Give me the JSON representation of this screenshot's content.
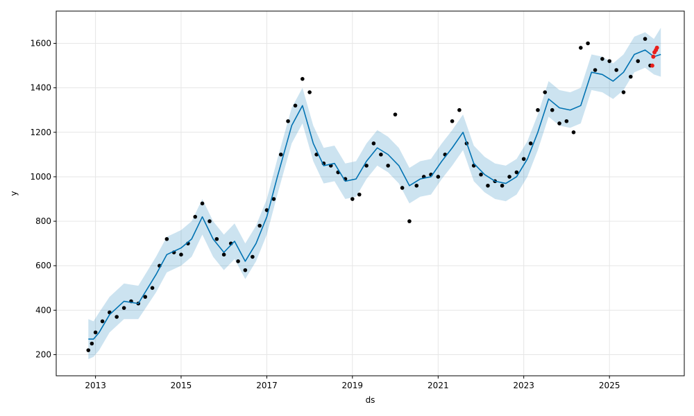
{
  "chart_data": {
    "type": "line",
    "xlabel": "ds",
    "ylabel": "y",
    "x_range": [
      "2012-02-01",
      "2026-10-01"
    ],
    "ylim": [
      105,
      1745
    ],
    "grid": true,
    "x_ticks": [
      "2013",
      "2015",
      "2017",
      "2019",
      "2021",
      "2023",
      "2025"
    ],
    "y_ticks": [
      200,
      400,
      600,
      800,
      1000,
      1200,
      1400,
      1600
    ],
    "colors": {
      "forecast_line": "#0072B2",
      "uncertainty_band": "#0072B2",
      "observed_points": "#000000",
      "recent_points": "#e8201c",
      "grid": "#e6e6e6",
      "axes": "#000000"
    },
    "series": [
      {
        "kind": "forecast",
        "x": [
          "2012-11-01",
          "2012-12-15",
          "2013-02-01",
          "2013-05-01",
          "2013-09-01",
          "2014-01-01",
          "2014-06-01",
          "2014-09-01",
          "2015-01-01",
          "2015-04-01",
          "2015-07-01",
          "2015-10-01",
          "2016-01-01",
          "2016-04-01",
          "2016-07-01",
          "2016-10-01",
          "2017-01-01",
          "2017-04-01",
          "2017-08-01",
          "2017-11-01",
          "2018-02-01",
          "2018-05-01",
          "2018-08-01",
          "2018-11-01",
          "2019-02-01",
          "2019-05-01",
          "2019-08-01",
          "2019-11-01",
          "2020-02-01",
          "2020-05-01",
          "2020-08-01",
          "2020-11-01",
          "2021-02-01",
          "2021-05-01",
          "2021-08-01",
          "2021-11-01",
          "2022-02-01",
          "2022-05-01",
          "2022-08-01",
          "2022-11-01",
          "2023-02-01",
          "2023-05-01",
          "2023-08-01",
          "2023-11-01",
          "2024-02-01",
          "2024-05-01",
          "2024-08-01",
          "2024-11-01",
          "2025-02-01",
          "2025-05-01",
          "2025-08-01",
          "2025-11-01",
          "2026-01-15",
          "2026-03-15"
        ],
        "y": [
          270,
          270,
          300,
          380,
          440,
          430,
          560,
          650,
          680,
          720,
          820,
          720,
          660,
          710,
          620,
          700,
          820,
          1000,
          1230,
          1320,
          1150,
          1050,
          1060,
          980,
          990,
          1070,
          1130,
          1100,
          1050,
          960,
          990,
          1000,
          1070,
          1130,
          1200,
          1060,
          1010,
          980,
          970,
          1000,
          1080,
          1200,
          1350,
          1310,
          1300,
          1320,
          1470,
          1460,
          1430,
          1470,
          1550,
          1570,
          1540,
          1550
        ]
      },
      {
        "kind": "uncertainty",
        "x": [
          "2012-11-01",
          "2012-12-15",
          "2013-02-01",
          "2013-05-01",
          "2013-09-01",
          "2014-01-01",
          "2014-06-01",
          "2014-09-01",
          "2015-01-01",
          "2015-04-01",
          "2015-07-01",
          "2015-10-01",
          "2016-01-01",
          "2016-04-01",
          "2016-07-01",
          "2016-10-01",
          "2017-01-01",
          "2017-04-01",
          "2017-08-01",
          "2017-11-01",
          "2018-02-01",
          "2018-05-01",
          "2018-08-01",
          "2018-11-01",
          "2019-02-01",
          "2019-05-01",
          "2019-08-01",
          "2019-11-01",
          "2020-02-01",
          "2020-05-01",
          "2020-08-01",
          "2020-11-01",
          "2021-02-01",
          "2021-05-01",
          "2021-08-01",
          "2021-11-01",
          "2022-02-01",
          "2022-05-01",
          "2022-08-01",
          "2022-11-01",
          "2023-02-01",
          "2023-05-01",
          "2023-08-01",
          "2023-11-01",
          "2024-02-01",
          "2024-05-01",
          "2024-08-01",
          "2024-11-01",
          "2025-02-01",
          "2025-05-01",
          "2025-08-01",
          "2025-11-01",
          "2026-01-15",
          "2026-03-15"
        ],
        "lower": [
          180,
          190,
          220,
          300,
          360,
          360,
          480,
          570,
          600,
          640,
          740,
          640,
          580,
          630,
          540,
          620,
          740,
          920,
          1150,
          1240,
          1070,
          970,
          980,
          900,
          910,
          990,
          1050,
          1020,
          970,
          880,
          910,
          920,
          990,
          1050,
          1120,
          980,
          930,
          900,
          890,
          920,
          1000,
          1120,
          1270,
          1230,
          1220,
          1240,
          1390,
          1380,
          1350,
          1390,
          1470,
          1490,
          1460,
          1450
        ],
        "upper": [
          360,
          350,
          390,
          460,
          520,
          510,
          640,
          730,
          760,
          800,
          900,
          800,
          740,
          790,
          700,
          780,
          900,
          1080,
          1310,
          1400,
          1230,
          1130,
          1140,
          1060,
          1070,
          1150,
          1210,
          1180,
          1130,
          1040,
          1070,
          1080,
          1150,
          1210,
          1280,
          1140,
          1090,
          1060,
          1050,
          1080,
          1160,
          1280,
          1430,
          1390,
          1380,
          1400,
          1550,
          1540,
          1510,
          1550,
          1630,
          1650,
          1620,
          1670
        ]
      },
      {
        "kind": "observed",
        "x": [
          "2012-11-01",
          "2012-12-01",
          "2013-01-01",
          "2013-03-01",
          "2013-05-01",
          "2013-07-01",
          "2013-09-01",
          "2013-11-01",
          "2014-01-01",
          "2014-03-01",
          "2014-05-01",
          "2014-07-01",
          "2014-09-01",
          "2014-11-01",
          "2015-01-01",
          "2015-03-01",
          "2015-05-01",
          "2015-07-01",
          "2015-09-01",
          "2015-11-01",
          "2016-01-01",
          "2016-03-01",
          "2016-05-01",
          "2016-07-01",
          "2016-09-01",
          "2016-11-01",
          "2017-01-01",
          "2017-03-01",
          "2017-05-01",
          "2017-07-01",
          "2017-09-01",
          "2017-11-01",
          "2018-01-01",
          "2018-03-01",
          "2018-05-01",
          "2018-07-01",
          "2018-09-01",
          "2018-11-01",
          "2019-01-01",
          "2019-03-01",
          "2019-05-01",
          "2019-07-01",
          "2019-09-01",
          "2019-11-01",
          "2020-01-01",
          "2020-03-01",
          "2020-05-01",
          "2020-07-01",
          "2020-09-01",
          "2020-11-01",
          "2021-01-01",
          "2021-03-01",
          "2021-05-01",
          "2021-07-01",
          "2021-09-01",
          "2021-11-01",
          "2022-01-01",
          "2022-03-01",
          "2022-05-01",
          "2022-07-01",
          "2022-09-01",
          "2022-11-01",
          "2023-01-01",
          "2023-03-01",
          "2023-05-01",
          "2023-07-01",
          "2023-09-01",
          "2023-11-01",
          "2024-01-01",
          "2024-03-01",
          "2024-05-01",
          "2024-07-01",
          "2024-09-01",
          "2024-11-01",
          "2025-01-01",
          "2025-03-01",
          "2025-05-01",
          "2025-07-01",
          "2025-09-01",
          "2025-11-01",
          "2025-12-15"
        ],
        "y": [
          220,
          250,
          300,
          350,
          390,
          370,
          410,
          440,
          430,
          460,
          500,
          600,
          720,
          660,
          650,
          700,
          820,
          880,
          800,
          720,
          650,
          700,
          620,
          580,
          640,
          780,
          850,
          900,
          1100,
          1250,
          1320,
          1440,
          1380,
          1100,
          1060,
          1050,
          1020,
          990,
          900,
          920,
          1050,
          1150,
          1100,
          1050,
          1280,
          950,
          800,
          960,
          1000,
          1010,
          1000,
          1100,
          1250,
          1300,
          1150,
          1050,
          1010,
          960,
          980,
          960,
          1000,
          1020,
          1080,
          1150,
          1300,
          1380,
          1300,
          1240,
          1250,
          1200,
          1580,
          1600,
          1480,
          1530,
          1520,
          1480,
          1380,
          1450,
          1520,
          1620,
          1500
        ]
      },
      {
        "kind": "recent",
        "x": [
          "2026-01-01",
          "2026-01-10",
          "2026-01-20",
          "2026-02-01",
          "2026-02-10"
        ],
        "y": [
          1500,
          1540,
          1560,
          1570,
          1580
        ]
      }
    ]
  }
}
